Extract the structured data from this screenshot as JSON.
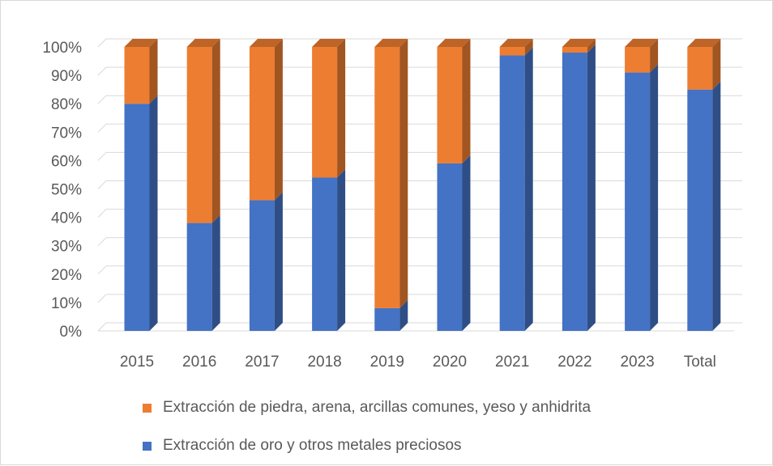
{
  "chart_data": {
    "type": "bar",
    "stacked": true,
    "percent_stacked": true,
    "three_d": true,
    "categories": [
      "2015",
      "2016",
      "2017",
      "2018",
      "2019",
      "2020",
      "2021",
      "2022",
      "2023",
      "Total"
    ],
    "series": [
      {
        "name": "Extracción de oro y otros metales preciosos",
        "color": "#4472c4",
        "values": [
          80,
          38,
          46,
          54,
          8,
          59,
          97,
          98,
          91,
          85
        ]
      },
      {
        "name": "Extracción de piedra, arena, arcillas comunes, yeso y anhidrita",
        "color": "#ed7d31",
        "values": [
          20,
          62,
          54,
          46,
          92,
          41,
          3,
          2,
          9,
          15
        ]
      }
    ],
    "ylim": [
      0,
      100
    ],
    "y_ticks": [
      "0%",
      "10%",
      "20%",
      "30%",
      "40%",
      "50%",
      "60%",
      "70%",
      "80%",
      "90%",
      "100%"
    ],
    "grid": true,
    "legend_position": "bottom",
    "legend_order": [
      1,
      0
    ]
  }
}
